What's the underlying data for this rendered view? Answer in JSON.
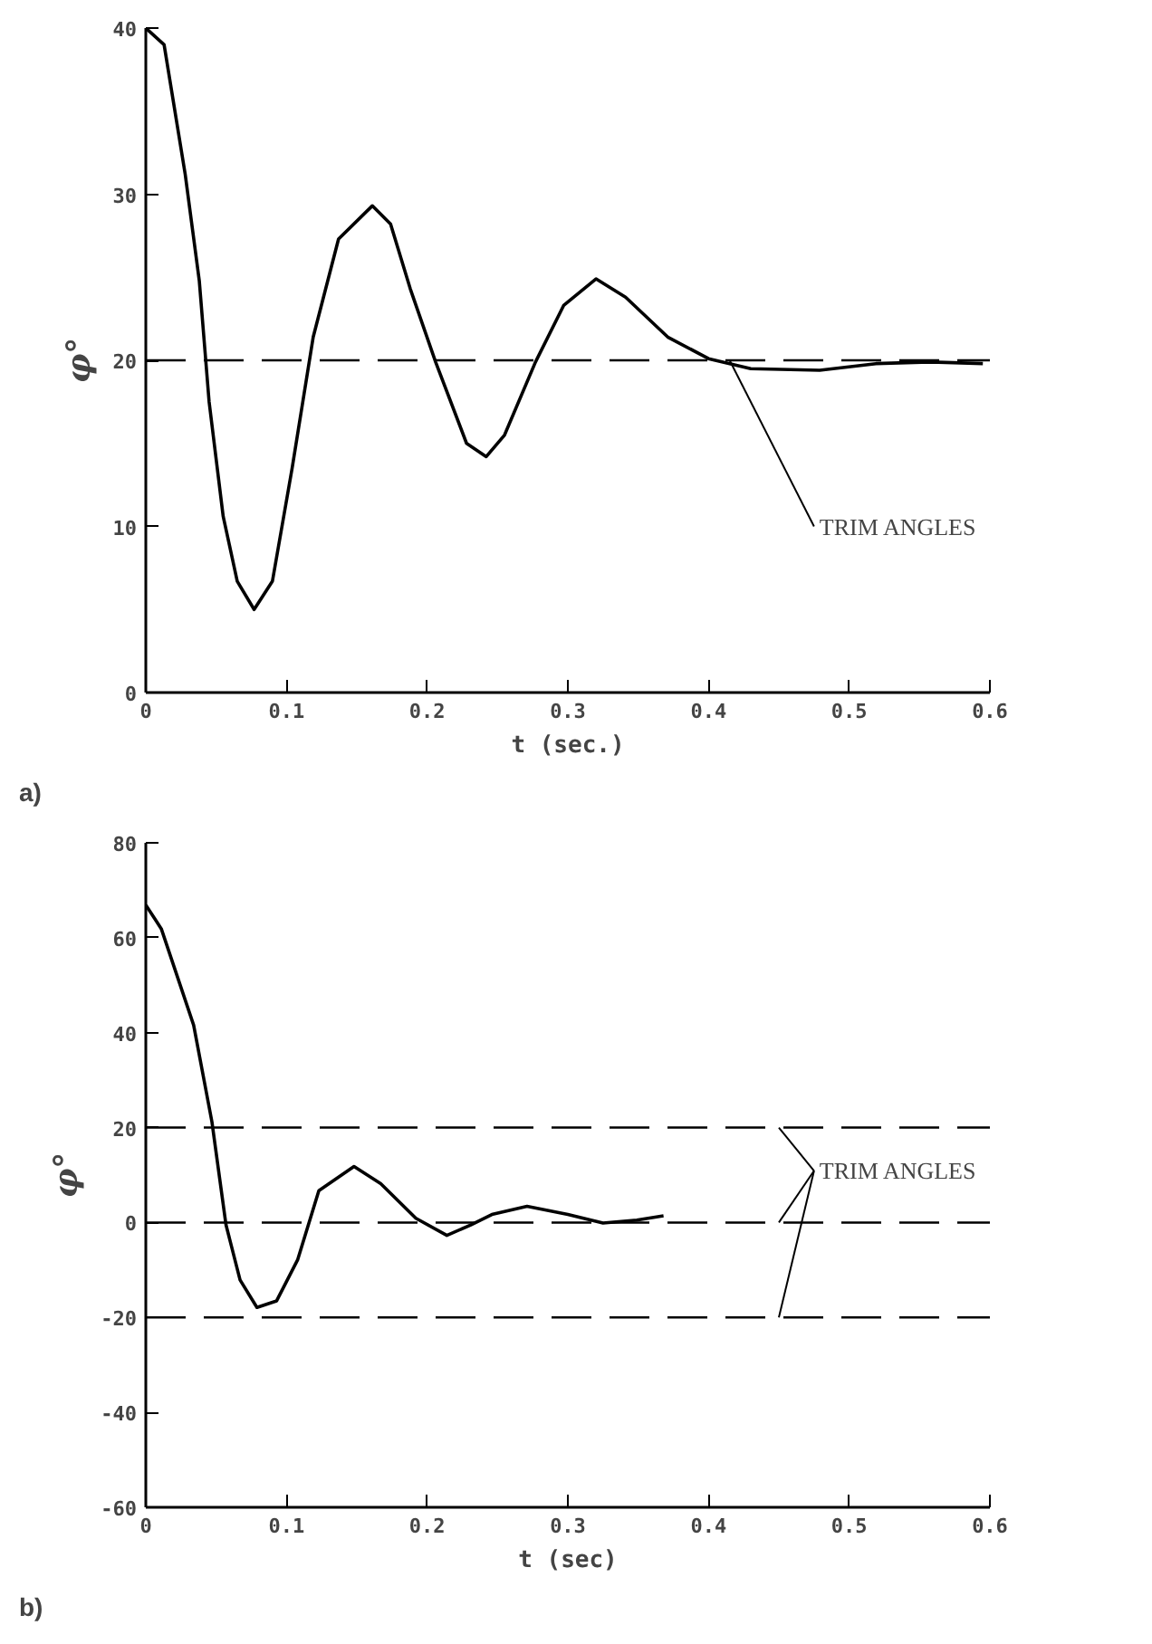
{
  "chart_data": [
    {
      "type": "line",
      "xlabel": "t (sec.)",
      "ylabel": "φ°",
      "xlim": [
        0,
        0.6
      ],
      "ylim": [
        0,
        40
      ],
      "xticks": [
        0,
        0.1,
        0.2,
        0.3,
        0.4,
        0.5,
        0.6
      ],
      "yticks": [
        0,
        10,
        20,
        30,
        40
      ],
      "grid": false,
      "line_style": "solid",
      "series": [
        {
          "color": "#000000",
          "x": [
            0,
            0.013,
            0.028,
            0.038,
            0.045,
            0.055,
            0.065,
            0.077,
            0.09,
            0.104,
            0.119,
            0.137,
            0.161,
            0.174,
            0.188,
            0.206,
            0.228,
            0.242,
            0.255,
            0.277,
            0.297,
            0.32,
            0.341,
            0.371,
            0.4,
            0.43,
            0.479,
            0.519,
            0.558,
            0.595
          ],
          "values": [
            40,
            39,
            31.2,
            24.8,
            17.5,
            10.6,
            6.7,
            5,
            6.7,
            13.5,
            21.4,
            27.3,
            29.3,
            28.2,
            24.3,
            19.9,
            15,
            14.2,
            15.5,
            19.9,
            23.3,
            24.9,
            23.8,
            21.4,
            20.1,
            19.5,
            19.4,
            19.8,
            19.9,
            19.8
          ]
        }
      ],
      "ref_lines": [
        {
          "axis": "y",
          "value": 20,
          "color": "#000000",
          "line_style": "dashed"
        }
      ],
      "annotations": [
        "a)",
        {
          "text": "TRIM ANGLES",
          "x": 0.415,
          "y": 20
        }
      ]
    },
    {
      "type": "line",
      "xlabel": "t (sec)",
      "ylabel": "φ°",
      "xlim": [
        0,
        0.6
      ],
      "ylim": [
        -60,
        80
      ],
      "xticks": [
        0,
        0.1,
        0.2,
        0.3,
        0.4,
        0.5,
        0.6
      ],
      "yticks": [
        -60,
        -40,
        -20,
        0,
        20,
        40,
        60,
        80
      ],
      "grid": false,
      "line_style": "solid",
      "series": [
        {
          "color": "#000000",
          "x": [
            0,
            0.011,
            0.034,
            0.047,
            0.057,
            0.067,
            0.079,
            0.093,
            0.108,
            0.123,
            0.148,
            0.167,
            0.192,
            0.214,
            0.231,
            0.246,
            0.271,
            0.3,
            0.325,
            0.349,
            0.368
          ],
          "values": [
            66.9,
            61.9,
            41.6,
            21.2,
            -0.5,
            -12.1,
            -17.9,
            -16.5,
            -7.8,
            6.7,
            11.8,
            8.2,
            0.9,
            -2.7,
            -0.5,
            1.7,
            3.4,
            1.7,
            -0.1,
            0.5,
            1.4
          ]
        }
      ],
      "ref_lines": [
        {
          "axis": "y",
          "value": 20,
          "color": "#000000",
          "line_style": "dashed"
        },
        {
          "axis": "y",
          "value": 0,
          "color": "#000000",
          "line_style": "dashed"
        },
        {
          "axis": "y",
          "value": -20,
          "color": "#000000",
          "line_style": "dashed"
        }
      ],
      "annotations": [
        "b)",
        {
          "text": "TRIM ANGLES",
          "x": 0.45,
          "y": 20
        }
      ]
    }
  ]
}
